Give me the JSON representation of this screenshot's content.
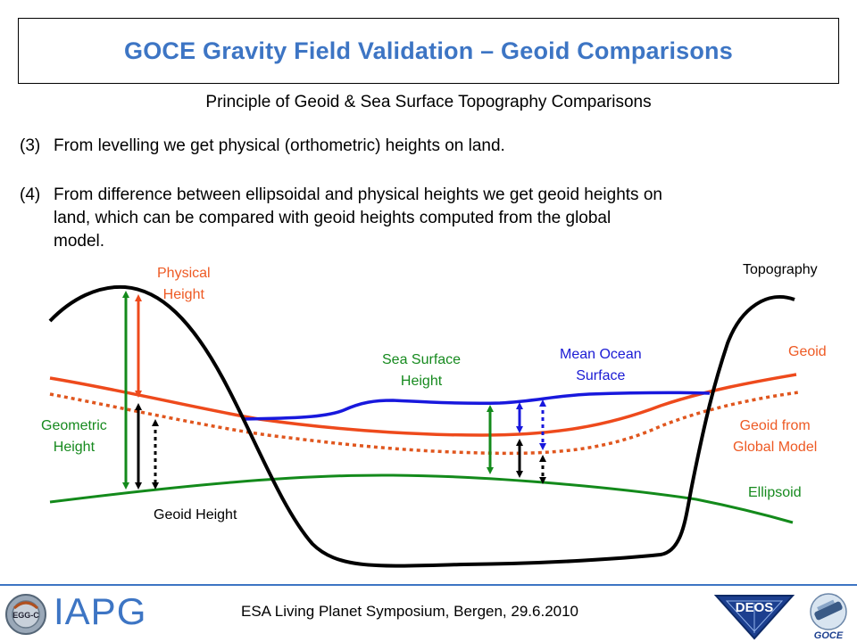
{
  "title": "GOCE Gravity Field Validation – Geoid Comparisons",
  "subtitle": "Principle of Geoid & Sea Surface Topography Comparisons",
  "point3": {
    "num": "(3)",
    "text": "From levelling we get physical (orthometric) heights on land."
  },
  "point4": {
    "num": "(4)",
    "line1": "From difference between ellipsoidal and physical heights we get geoid heights on",
    "line2": "land, which can be compared with geoid heights computed from the global",
    "line3": "model."
  },
  "diagram": {
    "physical_height": [
      "Physical",
      "Height"
    ],
    "geometric_height": [
      "Geometric",
      "Height"
    ],
    "geoid_height": "Geoid Height",
    "sea_surface_height": [
      "Sea Surface",
      "Height"
    ],
    "mean_ocean_surface": [
      "Mean Ocean",
      "Surface"
    ],
    "topography": "Topography",
    "geoid": "Geoid",
    "geoid_global_model": [
      "Geoid from",
      "Global Model"
    ],
    "ellipsoid": "Ellipsoid",
    "colors": {
      "topography": "#000000",
      "geoid": "#ee4a1c",
      "ellipsoid": "#138a1b",
      "ocean": "#1818dd",
      "label_orange": "#ee5a24",
      "title_blue": "#3d75c4"
    }
  },
  "footer": {
    "text": "ESA Living Planet Symposium, Bergen, 29.6.2010",
    "iapg": "IAPG",
    "logo_left": "EGG-C",
    "logo_deos": "DEOS",
    "logo_goce": "GOCE"
  }
}
